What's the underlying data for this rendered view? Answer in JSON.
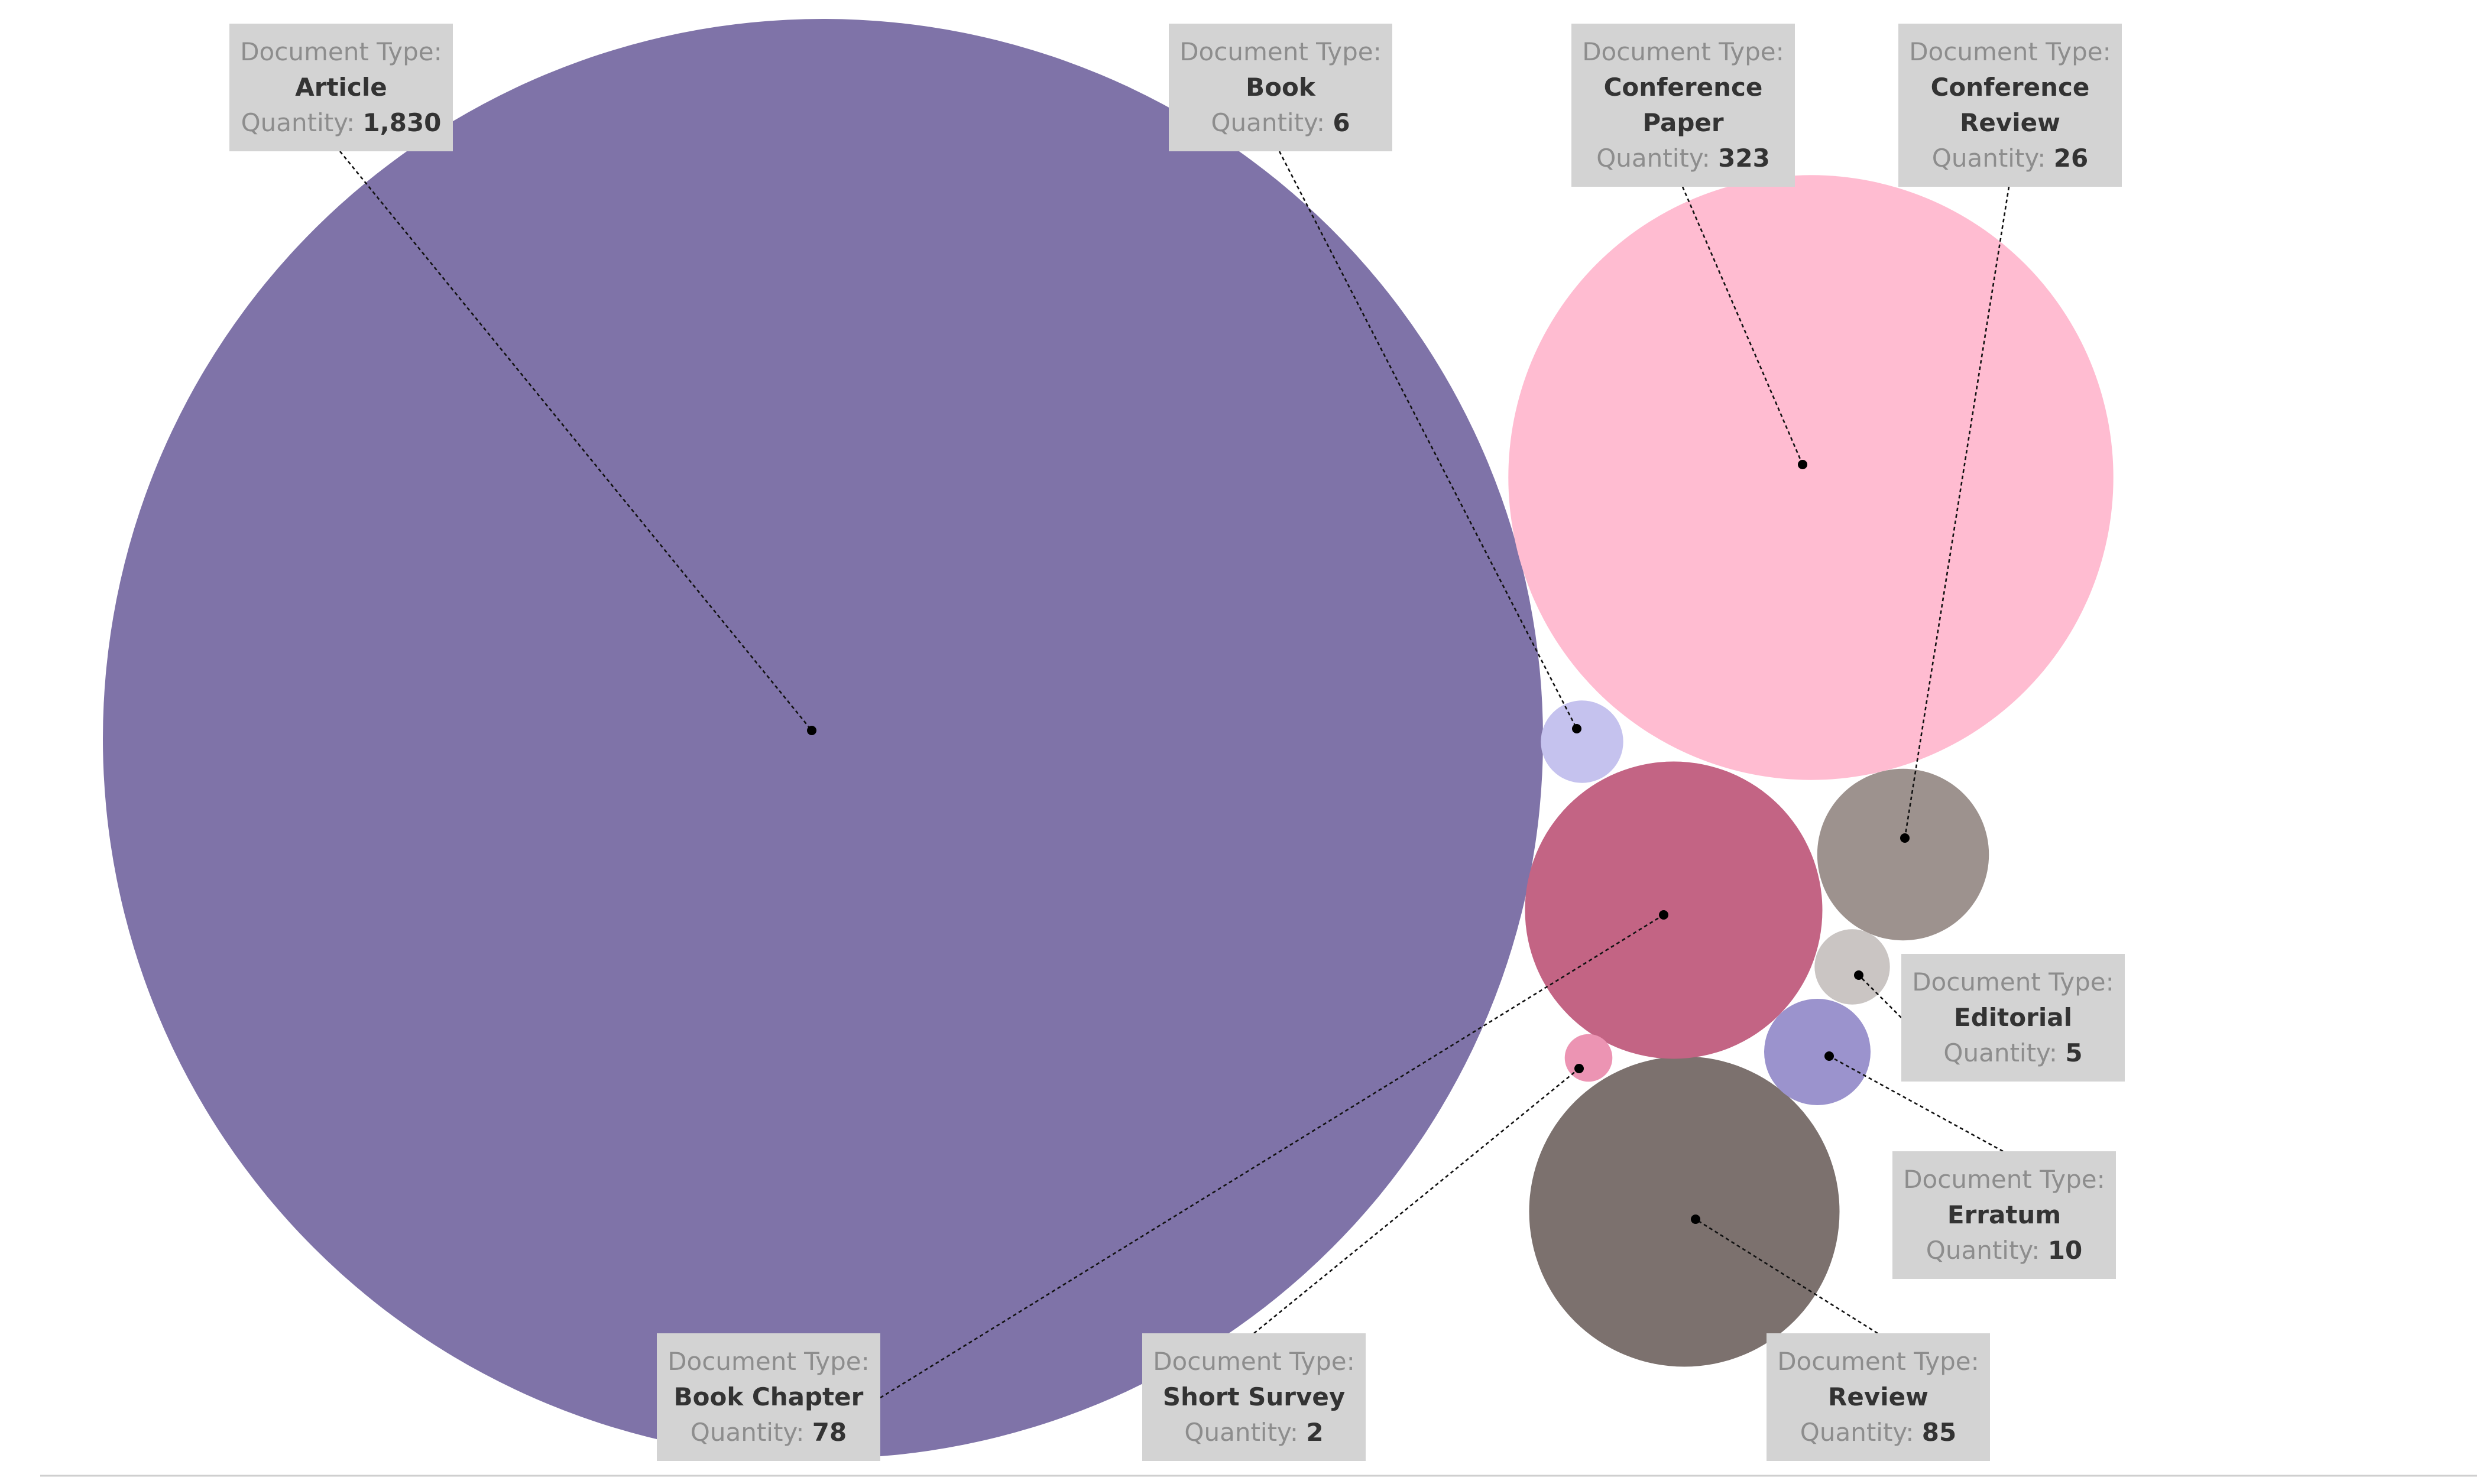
{
  "chart_data": {
    "type": "bubble",
    "title": "",
    "colors": {
      "Article": "#7f73a8",
      "Book": "#c5c2ee",
      "Conference Paper": "#ffbcd1",
      "Conference Review": "#9d928e",
      "Book Chapter": "#c36484",
      "Editorial": "#cac5c3",
      "Erratum": "#9b93cd",
      "Short Survey": "#ec94b3",
      "Review": "#7c716e"
    },
    "series": [
      {
        "document_type": "Article",
        "quantity": 1830,
        "quantity_label": "1,830"
      },
      {
        "document_type": "Book",
        "quantity": 6,
        "quantity_label": "6"
      },
      {
        "document_type": "Conference Paper",
        "quantity": 323,
        "quantity_label": "323"
      },
      {
        "document_type": "Conference Review",
        "quantity": 26,
        "quantity_label": "26"
      },
      {
        "document_type": "Book Chapter",
        "quantity": 78,
        "quantity_label": "78"
      },
      {
        "document_type": "Editorial",
        "quantity": 5,
        "quantity_label": "5"
      },
      {
        "document_type": "Erratum",
        "quantity": 10,
        "quantity_label": "10"
      },
      {
        "document_type": "Short Survey",
        "quantity": 2,
        "quantity_label": "2"
      },
      {
        "document_type": "Review",
        "quantity": 85,
        "quantity_label": "85"
      }
    ],
    "tooltip_labels": {
      "type_key": "Document Type:",
      "quantity_key": "Quantity:"
    }
  }
}
